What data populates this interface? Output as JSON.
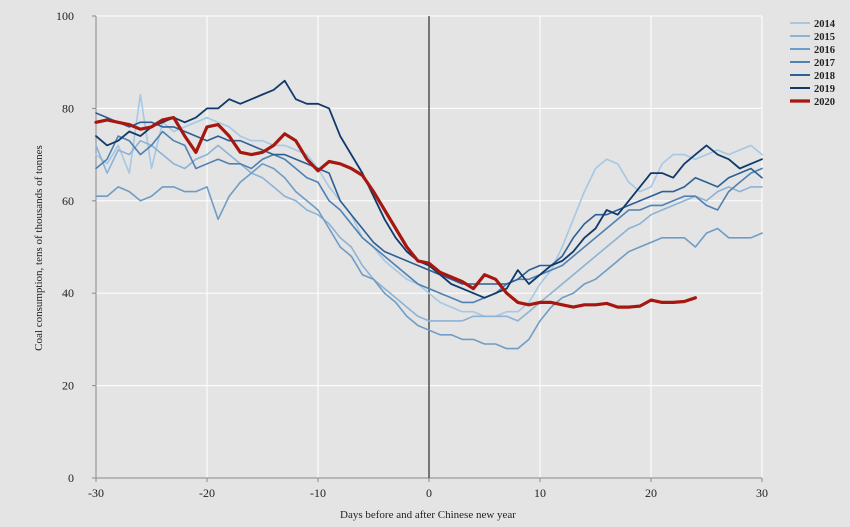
{
  "chart_data": {
    "type": "line",
    "xlabel": "Days before and after Chinese new year",
    "ylabel": "Coal consumption, tens of thousands of tonnes",
    "xlim": [
      -30,
      30
    ],
    "ylim": [
      0,
      100
    ],
    "xticks": [
      -30,
      -20,
      -10,
      0,
      10,
      20,
      30
    ],
    "yticks": [
      0,
      20,
      40,
      60,
      80,
      100
    ],
    "grid": true,
    "legend_position": "top-right",
    "reference_line_x": 0,
    "series": [
      {
        "name": "2014",
        "color": "#a6c8e3",
        "width": 1.6,
        "x": [
          -30,
          -29,
          -28,
          -27,
          -26,
          -25,
          -24,
          -23,
          -22,
          -21,
          -20,
          -19,
          -18,
          -17,
          -16,
          -15,
          -14,
          -13,
          -12,
          -11,
          -10,
          -9,
          -8,
          -7,
          -6,
          -5,
          -4,
          -3,
          -2,
          -1,
          0,
          1,
          2,
          3,
          4,
          5,
          6,
          7,
          8,
          9,
          10,
          11,
          12,
          13,
          14,
          15,
          16,
          17,
          18,
          19,
          20,
          21,
          22,
          23,
          24,
          25,
          26,
          27,
          28,
          29,
          30
        ],
        "y": [
          70,
          68,
          72,
          66,
          83,
          67,
          77,
          75,
          76,
          77,
          78,
          77,
          76,
          74,
          73,
          73,
          72,
          72,
          71,
          70,
          67,
          63,
          60,
          57,
          52,
          50,
          47,
          45,
          43,
          42,
          40,
          38,
          37,
          36,
          36,
          35,
          35,
          36,
          36,
          38,
          42,
          45,
          50,
          56,
          62,
          67,
          69,
          68,
          64,
          62,
          63,
          68,
          70,
          70,
          69,
          70,
          71,
          70,
          71,
          72,
          70
        ]
      },
      {
        "name": "2015",
        "color": "#8cb3d5",
        "width": 1.6,
        "x": [
          -30,
          -29,
          -28,
          -27,
          -26,
          -25,
          -24,
          -23,
          -22,
          -21,
          -20,
          -19,
          -18,
          -17,
          -16,
          -15,
          -14,
          -13,
          -12,
          -11,
          -10,
          -9,
          -8,
          -7,
          -6,
          -5,
          -4,
          -3,
          -2,
          -1,
          0,
          1,
          2,
          3,
          4,
          5,
          6,
          7,
          8,
          9,
          10,
          11,
          12,
          13,
          14,
          15,
          16,
          17,
          18,
          19,
          20,
          21,
          22,
          23,
          24,
          25,
          26,
          27,
          28,
          29,
          30
        ],
        "y": [
          72,
          66,
          71,
          70,
          73,
          72,
          70,
          68,
          67,
          69,
          70,
          72,
          70,
          68,
          66,
          65,
          63,
          61,
          60,
          58,
          57,
          55,
          52,
          50,
          46,
          43,
          41,
          39,
          37,
          35,
          34,
          34,
          34,
          34,
          35,
          35,
          35,
          35,
          34,
          36,
          38,
          40,
          42,
          44,
          46,
          48,
          50,
          52,
          54,
          55,
          57,
          58,
          59,
          60,
          61,
          60,
          62,
          63,
          62,
          63,
          63
        ]
      },
      {
        "name": "2016",
        "color": "#6f9cc5",
        "width": 1.6,
        "x": [
          -30,
          -29,
          -28,
          -27,
          -26,
          -25,
          -24,
          -23,
          -22,
          -21,
          -20,
          -19,
          -18,
          -17,
          -16,
          -15,
          -14,
          -13,
          -12,
          -11,
          -10,
          -9,
          -8,
          -7,
          -6,
          -5,
          -4,
          -3,
          -2,
          -1,
          0,
          1,
          2,
          3,
          4,
          5,
          6,
          7,
          8,
          9,
          10,
          11,
          12,
          13,
          14,
          15,
          16,
          17,
          18,
          19,
          20,
          21,
          22,
          23,
          24,
          25,
          26,
          27,
          28,
          29,
          30
        ],
        "y": [
          61,
          61,
          63,
          62,
          60,
          61,
          63,
          63,
          62,
          62,
          63,
          56,
          61,
          64,
          66,
          68,
          67,
          65,
          62,
          60,
          58,
          54,
          50,
          48,
          44,
          43,
          40,
          38,
          35,
          33,
          32,
          31,
          31,
          30,
          30,
          29,
          29,
          28,
          28,
          30,
          34,
          37,
          39,
          40,
          42,
          43,
          45,
          47,
          49,
          50,
          51,
          52,
          52,
          52,
          50,
          53,
          54,
          52,
          52,
          52,
          53
        ]
      },
      {
        "name": "2017",
        "color": "#4f81b2",
        "width": 1.6,
        "x": [
          -30,
          -29,
          -28,
          -27,
          -26,
          -25,
          -24,
          -23,
          -22,
          -21,
          -20,
          -19,
          -18,
          -17,
          -16,
          -15,
          -14,
          -13,
          -12,
          -11,
          -10,
          -9,
          -8,
          -7,
          -6,
          -5,
          -4,
          -3,
          -2,
          -1,
          0,
          1,
          2,
          3,
          4,
          5,
          6,
          7,
          8,
          9,
          10,
          11,
          12,
          13,
          14,
          15,
          16,
          17,
          18,
          19,
          20,
          21,
          22,
          23,
          24,
          25,
          26,
          27,
          28,
          29,
          30
        ],
        "y": [
          67,
          69,
          74,
          73,
          70,
          72,
          75,
          73,
          72,
          67,
          68,
          69,
          68,
          68,
          67,
          69,
          70,
          69,
          67,
          65,
          64,
          60,
          58,
          55,
          52,
          50,
          48,
          46,
          44,
          42,
          41,
          40,
          39,
          38,
          38,
          39,
          40,
          42,
          43,
          43,
          44,
          45,
          46,
          48,
          50,
          52,
          54,
          56,
          58,
          58,
          59,
          59,
          60,
          61,
          61,
          59,
          58,
          62,
          64,
          66,
          67
        ]
      },
      {
        "name": "2018",
        "color": "#2d5f95",
        "width": 1.6,
        "x": [
          -30,
          -29,
          -28,
          -27,
          -26,
          -25,
          -24,
          -23,
          -22,
          -21,
          -20,
          -19,
          -18,
          -17,
          -16,
          -15,
          -14,
          -13,
          -12,
          -11,
          -10,
          -9,
          -8,
          -7,
          -6,
          -5,
          -4,
          -3,
          -2,
          -1,
          0,
          1,
          2,
          3,
          4,
          5,
          6,
          7,
          8,
          9,
          10,
          11,
          12,
          13,
          14,
          15,
          16,
          17,
          18,
          19,
          20,
          21,
          22,
          23,
          24,
          25,
          26,
          27,
          28,
          29,
          30
        ],
        "y": [
          79,
          78,
          77,
          76,
          77,
          77,
          76,
          76,
          75,
          74,
          73,
          74,
          73,
          73,
          72,
          71,
          70,
          70,
          69,
          68,
          67,
          66,
          60,
          57,
          54,
          51,
          49,
          48,
          47,
          46,
          45,
          44,
          43,
          42,
          42,
          42,
          42,
          42,
          43,
          45,
          46,
          46,
          48,
          52,
          55,
          57,
          57,
          58,
          59,
          60,
          61,
          62,
          62,
          63,
          65,
          64,
          63,
          65,
          66,
          67,
          65
        ]
      },
      {
        "name": "2019",
        "color": "#103a6b",
        "width": 1.8,
        "x": [
          -30,
          -29,
          -28,
          -27,
          -26,
          -25,
          -24,
          -23,
          -22,
          -21,
          -20,
          -19,
          -18,
          -17,
          -16,
          -15,
          -14,
          -13,
          -12,
          -11,
          -10,
          -9,
          -8,
          -7,
          -6,
          -5,
          -4,
          -3,
          -2,
          -1,
          0,
          1,
          2,
          3,
          4,
          5,
          6,
          7,
          8,
          9,
          10,
          11,
          12,
          13,
          14,
          15,
          16,
          17,
          18,
          19,
          20,
          21,
          22,
          23,
          24,
          25,
          26,
          27,
          28,
          29,
          30
        ],
        "y": [
          74,
          72,
          73,
          75,
          74,
          76,
          77,
          78,
          77,
          78,
          80,
          80,
          82,
          81,
          82,
          83,
          84,
          86,
          82,
          81,
          81,
          80,
          74,
          70,
          66,
          61,
          56,
          52,
          49,
          47,
          46,
          44,
          42,
          41,
          40,
          39,
          40,
          41,
          45,
          42,
          44,
          46,
          47,
          49,
          52,
          54,
          58,
          57,
          60,
          63,
          66,
          66,
          65,
          68,
          70,
          72,
          70,
          69,
          67,
          68,
          69
        ]
      },
      {
        "name": "2020",
        "color": "#a5170f",
        "width": 3.2,
        "x": [
          -30,
          -29,
          -28,
          -27,
          -26,
          -25,
          -24,
          -23,
          -22,
          -21,
          -20,
          -19,
          -18,
          -17,
          -16,
          -15,
          -14,
          -13,
          -12,
          -11,
          -10,
          -9,
          -8,
          -7,
          -6,
          -5,
          -4,
          -3,
          -2,
          -1,
          0,
          1,
          2,
          3,
          4,
          5,
          6,
          7,
          8,
          9,
          10,
          11,
          12,
          13,
          14,
          15,
          16,
          17,
          18,
          19,
          20,
          21,
          22,
          23,
          24
        ],
        "y": [
          77,
          77.5,
          77,
          76.5,
          75.5,
          76,
          77.5,
          78,
          74,
          70.5,
          76,
          76.5,
          74,
          70.5,
          70,
          70.5,
          72,
          74.5,
          73,
          69,
          66.5,
          68.5,
          68,
          67,
          65.5,
          62,
          58,
          54,
          50,
          47,
          46.5,
          44.5,
          43.5,
          42.5,
          41,
          44,
          43,
          40,
          38,
          37.5,
          38,
          38,
          37.5,
          37,
          37.5,
          37.5,
          37.8,
          37,
          37,
          37.2,
          38.5,
          38,
          38,
          38.2,
          39
        ]
      }
    ]
  }
}
